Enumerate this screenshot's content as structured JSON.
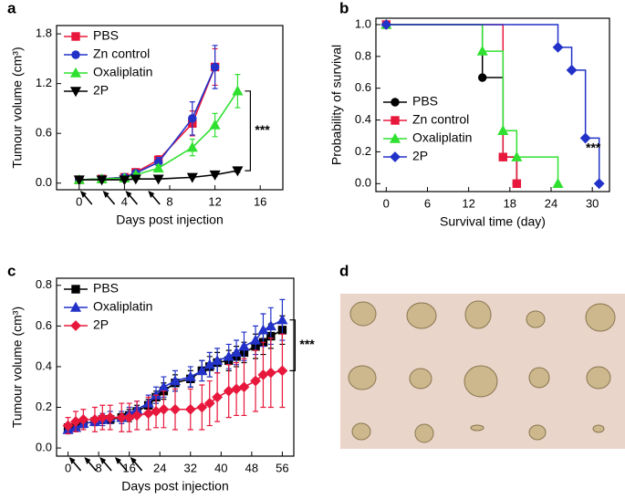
{
  "chart_data": [
    {
      "type": "line",
      "label": "a",
      "xlabel": "Days post injection",
      "ylabel": "Tumour volume (cm³)",
      "xlim": [
        -2,
        18
      ],
      "xticks": [
        0,
        4,
        8,
        12,
        16
      ],
      "ylim": [
        -0.08,
        1.9
      ],
      "yticks": [
        {
          "value": 0,
          "label": "0.0"
        },
        {
          "value": 0.6,
          "label": "0.6"
        },
        {
          "value": 1.2,
          "label": "1.2"
        },
        {
          "value": 1.8,
          "label": "1.8"
        }
      ],
      "x": [
        0,
        2,
        4,
        5,
        7,
        10,
        12,
        14
      ],
      "legend": "upper left",
      "annotation": "***",
      "injection_days": [
        0,
        2,
        4,
        6
      ],
      "series": [
        {
          "name": "PBS",
          "color": "#e8183c",
          "marker": "square",
          "values": [
            0.04,
            0.05,
            0.07,
            0.13,
            0.28,
            0.72,
            1.4,
            null
          ],
          "errors": [
            0.01,
            0.01,
            0.02,
            0.03,
            0.05,
            0.15,
            0.22,
            null
          ]
        },
        {
          "name": "Zn control",
          "color": "#2232c8",
          "marker": "circle",
          "values": [
            0.04,
            0.05,
            0.07,
            0.12,
            0.25,
            0.78,
            1.4,
            null
          ],
          "errors": [
            0.01,
            0.01,
            0.02,
            0.03,
            0.06,
            0.2,
            0.26,
            null
          ]
        },
        {
          "name": "Oxaliplatin",
          "color": "#30e030",
          "marker": "triangle",
          "values": [
            0.04,
            0.05,
            0.06,
            0.1,
            0.18,
            0.43,
            0.7,
            1.11
          ],
          "errors": [
            0.01,
            0.01,
            0.01,
            0.02,
            0.04,
            0.1,
            0.14,
            0.2
          ]
        },
        {
          "name": "2P",
          "color": "#000000",
          "marker": "down",
          "values": [
            0.04,
            0.04,
            0.04,
            0.05,
            0.05,
            0.07,
            0.1,
            0.15
          ],
          "errors": [
            0.005,
            0.005,
            0.005,
            0.005,
            0.01,
            0.01,
            0.015,
            0.02
          ]
        }
      ]
    },
    {
      "type": "step",
      "label": "b",
      "xlabel": "Survival time (day)",
      "ylabel": "Probability of survival",
      "xlim": [
        -1.5,
        32.5
      ],
      "xticks": [
        0,
        6,
        12,
        18,
        24,
        30
      ],
      "ylim": [
        -0.05,
        1.04
      ],
      "yticks": [
        {
          "value": 0,
          "label": "0.0"
        },
        {
          "value": 0.2,
          "label": "0.2"
        },
        {
          "value": 0.4,
          "label": "0.4"
        },
        {
          "value": 0.6,
          "label": "0.6"
        },
        {
          "value": 0.8,
          "label": "0.8"
        },
        {
          "value": 1,
          "label": "1.0"
        }
      ],
      "legend": "lower left",
      "annotation": "***",
      "series": [
        {
          "name": "PBS",
          "color": "#000000",
          "marker": "circle",
          "x": [
            0,
            14,
            17,
            19
          ],
          "values": [
            1,
            0.667,
            0.167,
            0
          ]
        },
        {
          "name": "Zn control",
          "color": "#e8183c",
          "marker": "square",
          "x": [
            0,
            17,
            19
          ],
          "values": [
            1,
            0.167,
            0
          ]
        },
        {
          "name": "Oxaliplatin",
          "color": "#30e030",
          "marker": "triangle",
          "x": [
            0,
            14,
            17,
            19,
            25
          ],
          "values": [
            1,
            0.833,
            0.333,
            0.167,
            0
          ]
        },
        {
          "name": "2P",
          "color": "#2232c8",
          "marker": "diamond",
          "x": [
            0,
            25,
            27,
            29,
            31
          ],
          "values": [
            1,
            0.857,
            0.714,
            0.286,
            0
          ]
        }
      ]
    },
    {
      "type": "line",
      "label": "c",
      "xlabel": "Days post injection",
      "ylabel": "Tumour volume (cm³)",
      "xlim": [
        -3,
        59
      ],
      "xticks": [
        0,
        8,
        16,
        24,
        32,
        40,
        48,
        56
      ],
      "ylim": [
        -0.04,
        0.835
      ],
      "yticks": [
        {
          "value": 0,
          "label": "0.0"
        },
        {
          "value": 0.2,
          "label": "0.2"
        },
        {
          "value": 0.4,
          "label": "0.4"
        },
        {
          "value": 0.6,
          "label": "0.6"
        },
        {
          "value": 0.8,
          "label": "0.8"
        }
      ],
      "x": [
        0,
        2,
        4,
        7,
        9,
        11,
        14,
        16,
        18,
        21,
        23,
        25,
        28,
        32,
        35,
        37,
        39,
        42,
        44,
        46,
        49,
        51,
        53,
        56
      ],
      "legend": "upper left",
      "annotation": "***",
      "injection_days": [
        0,
        4,
        8,
        12,
        16
      ],
      "series": [
        {
          "name": "PBS",
          "color": "#000000",
          "marker": "square",
          "values": [
            0.1,
            0.11,
            0.12,
            0.13,
            0.14,
            0.14,
            0.15,
            0.16,
            0.18,
            0.21,
            0.25,
            0.28,
            0.32,
            0.34,
            0.38,
            0.4,
            0.42,
            0.43,
            0.45,
            0.47,
            0.5,
            0.52,
            0.55,
            0.58
          ],
          "errors": [
            0.02,
            0.02,
            0.02,
            0.02,
            0.02,
            0.02,
            0.02,
            0.03,
            0.03,
            0.03,
            0.03,
            0.04,
            0.04,
            0.04,
            0.05,
            0.05,
            0.05,
            0.05,
            0.05,
            0.05,
            0.06,
            0.06,
            0.06,
            0.07
          ]
        },
        {
          "name": "Oxaliplatin",
          "color": "#2232c8",
          "marker": "triangle",
          "values": [
            0.09,
            0.1,
            0.12,
            0.13,
            0.14,
            0.15,
            0.15,
            0.17,
            0.19,
            0.22,
            0.26,
            0.3,
            0.33,
            0.35,
            0.38,
            0.41,
            0.43,
            0.45,
            0.47,
            0.5,
            0.53,
            0.58,
            0.6,
            0.63
          ],
          "errors": [
            0.02,
            0.02,
            0.02,
            0.02,
            0.03,
            0.03,
            0.03,
            0.03,
            0.04,
            0.04,
            0.04,
            0.05,
            0.05,
            0.05,
            0.05,
            0.06,
            0.06,
            0.06,
            0.06,
            0.07,
            0.07,
            0.08,
            0.09,
            0.1
          ]
        },
        {
          "name": "2P",
          "color": "#e8183c",
          "marker": "diamond",
          "values": [
            0.11,
            0.13,
            0.14,
            0.14,
            0.15,
            0.15,
            0.15,
            0.15,
            0.16,
            0.17,
            0.18,
            0.19,
            0.19,
            0.19,
            0.2,
            0.22,
            0.25,
            0.28,
            0.29,
            0.3,
            0.33,
            0.36,
            0.37,
            0.38
          ],
          "errors": [
            0.04,
            0.05,
            0.05,
            0.06,
            0.06,
            0.06,
            0.07,
            0.07,
            0.07,
            0.08,
            0.08,
            0.09,
            0.1,
            0.1,
            0.11,
            0.11,
            0.12,
            0.13,
            0.13,
            0.14,
            0.15,
            0.16,
            0.17,
            0.18
          ]
        }
      ]
    },
    {
      "type": "photo",
      "label": "d"
    }
  ]
}
